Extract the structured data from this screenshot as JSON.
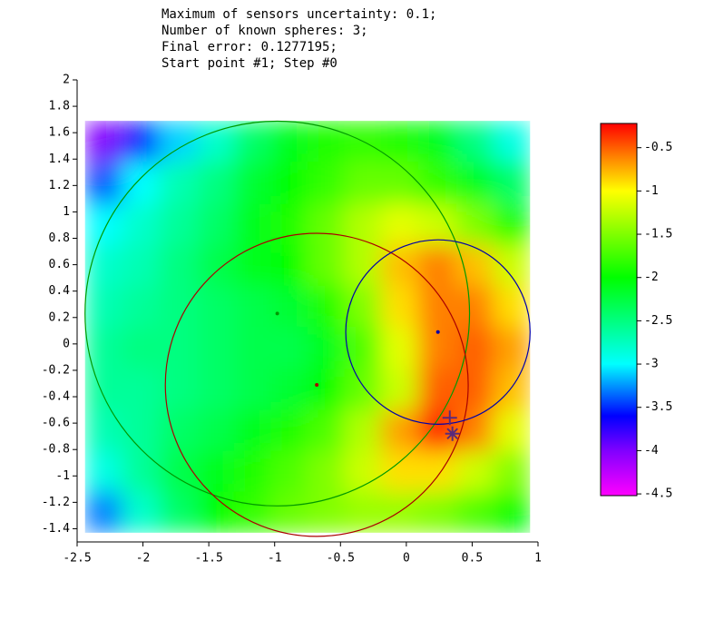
{
  "chart_data": {
    "type": "heatmap",
    "title_lines": [
      "Maximum of sensors uncertainty: 0.1;",
      "Number of known spheres: 3;",
      "Final error: 0.1277195;",
      "Start point #1; Step #0"
    ],
    "xlim": [
      -2.5,
      1
    ],
    "ylim": [
      -1.5,
      2
    ],
    "xticks": [
      -2.5,
      -2,
      -1.5,
      -1,
      -0.5,
      0,
      0.5,
      1
    ],
    "yticks": [
      2,
      1.8,
      1.6,
      1.4,
      1.2,
      1,
      0.8,
      0.6,
      0.4,
      0.2,
      0,
      -0.2,
      -0.4,
      -0.6,
      -0.8,
      -1,
      -1.2,
      -1.4
    ],
    "heatmap": {
      "x_edges": [
        -2.44,
        -2.16,
        -1.88,
        -1.59,
        -1.31,
        -1.03,
        -0.75,
        -0.47,
        -0.19,
        0.09,
        0.38,
        0.66,
        0.94
      ],
      "y_edges": [
        1.69,
        1.38,
        1.06,
        0.75,
        0.44,
        0.13,
        -0.19,
        -0.5,
        -0.81,
        -1.12,
        -1.43
      ],
      "values": [
        [
          -4.0,
          -3.5,
          -3.1,
          -2.8,
          -2.4,
          -2.1,
          -1.9,
          -1.8,
          -1.9,
          -2.1,
          -2.5,
          -2.9
        ],
        [
          -3.4,
          -3.0,
          -2.7,
          -2.5,
          -2.2,
          -2.0,
          -1.8,
          -1.6,
          -1.6,
          -1.8,
          -2.1,
          -2.4
        ],
        [
          -3.0,
          -2.8,
          -2.6,
          -2.4,
          -2.1,
          -1.9,
          -1.6,
          -1.3,
          -1.1,
          -1.2,
          -1.5,
          -1.9
        ],
        [
          -2.8,
          -2.7,
          -2.5,
          -2.3,
          -2.1,
          -2.0,
          -1.6,
          -1.3,
          -0.8,
          -0.6,
          -0.8,
          -1.2
        ],
        [
          -2.7,
          -2.6,
          -2.5,
          -2.4,
          -2.3,
          -2.2,
          -1.9,
          -1.5,
          -0.9,
          -0.6,
          -0.6,
          -0.9
        ],
        [
          -2.6,
          -2.5,
          -2.5,
          -2.4,
          -2.3,
          -2.3,
          -2.1,
          -1.7,
          -1.1,
          -0.6,
          -0.5,
          -0.7
        ],
        [
          -2.6,
          -2.6,
          -2.5,
          -2.4,
          -2.3,
          -2.2,
          -2.0,
          -1.6,
          -1.2,
          -0.5,
          -0.5,
          -0.8
        ],
        [
          -2.7,
          -2.6,
          -2.4,
          -2.3,
          -2.1,
          -1.9,
          -1.7,
          -1.3,
          -0.7,
          -0.3,
          -0.6,
          -1.1
        ],
        [
          -2.9,
          -2.6,
          -2.3,
          -2.1,
          -1.9,
          -1.7,
          -1.5,
          -1.2,
          -0.9,
          -0.9,
          -1.2,
          -1.5
        ],
        [
          -3.3,
          -2.8,
          -2.4,
          -2.0,
          -1.8,
          -1.6,
          -1.5,
          -1.4,
          -1.4,
          -1.5,
          -1.7,
          -2.0
        ]
      ]
    },
    "clim": [
      -4.52,
      -0.22
    ],
    "colorbar_ticks": [
      -0.5,
      -1,
      -1.5,
      -2,
      -2.5,
      -3,
      -3.5,
      -4,
      -4.5
    ],
    "colorscale": [
      [
        -4.52,
        "#ff00ff"
      ],
      [
        -4.0,
        "#8000ff"
      ],
      [
        -3.6,
        "#0000ff"
      ],
      [
        -3.0,
        "#00ffff"
      ],
      [
        -2.0,
        "#00ff00"
      ],
      [
        -1.0,
        "#ffff00"
      ],
      [
        -0.6,
        "#ff8000"
      ],
      [
        -0.22,
        "#ff0000"
      ]
    ],
    "circles": [
      {
        "center": [
          -0.98,
          0.23
        ],
        "radius": 1.46,
        "color": "#009900"
      },
      {
        "center": [
          -0.68,
          -0.31
        ],
        "radius": 1.15,
        "color": "#aa0000"
      },
      {
        "center": [
          0.24,
          0.09
        ],
        "radius": 0.7,
        "color": "#0000aa"
      }
    ],
    "markers": [
      {
        "x": 0.33,
        "y": -0.56,
        "symbol": "plus",
        "color": "#5a2a7a"
      },
      {
        "x": 0.35,
        "y": -0.68,
        "symbol": "star",
        "color": "#5a2a7a"
      }
    ]
  }
}
